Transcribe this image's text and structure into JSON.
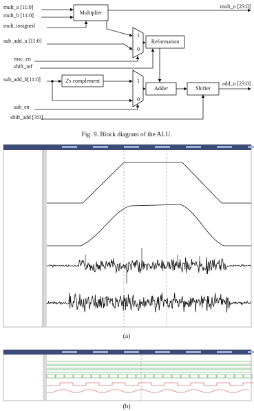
{
  "diagram": {
    "inputs": {
      "mult_a": "mult_a [11:0]",
      "mult_b": "mult_b [11:0]",
      "mult_insigned": "mult_insigned",
      "sub_add_a": "sub_add_a [11:0]",
      "mac_en": "mac_en",
      "shift_ref": "shift_ref",
      "sub_add_b": "sub_add_b[11:0]",
      "sub_en": "sub_en",
      "shift_add": "shift_add [3:0]"
    },
    "blocks": {
      "multiplier": "Multiplier",
      "reformation": "Reformation",
      "twos_complement": "2's complement",
      "adder": "Adder",
      "shifter": "Shifter"
    },
    "mux_labels": [
      "1",
      "0"
    ],
    "outputs": {
      "mult_o": "mult_o [23:0]",
      "add_o": "add_o [23:0]"
    }
  },
  "captions": {
    "fig9": "Fig. 9.  Block diagram of the ALU.",
    "a": "(a)",
    "b": "(b)"
  }
}
